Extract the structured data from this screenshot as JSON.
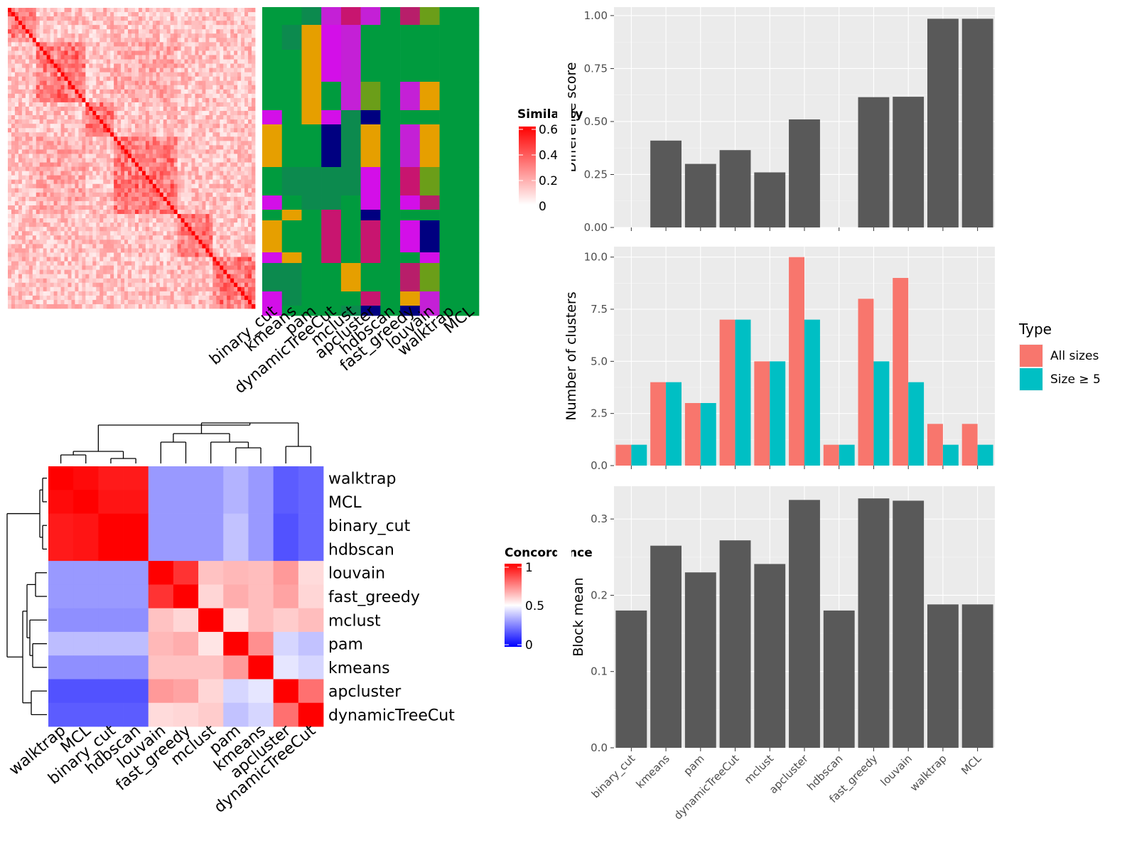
{
  "colors": {
    "methods": {
      "binary_cut": "#009B3E",
      "kmeans": "#D30FE8",
      "pam": "#E69F00",
      "dynamicTreeCut": "#000080",
      "mclust": "#C8156F",
      "apcluster": "#6B9E19",
      "hdbscan": "#0C8A4E",
      "fast_greedy": "#C420D6",
      "louvain": "#B81E6A",
      "walktrap": "#009B3E",
      "MCL": "#009B3E"
    },
    "all_sizes": "#F8766D",
    "size_ge_5": "#00BFC4",
    "bar_gray": "#595959"
  },
  "methods_top": [
    "binary_cut",
    "kmeans",
    "pam",
    "dynamicTreeCut",
    "mclust",
    "apcluster",
    "hdbscan",
    "fast_greedy",
    "louvain",
    "walktrap",
    "MCL"
  ],
  "similarity_legend": {
    "title": "Similarity",
    "ticks": [
      "0.6",
      "0.4",
      "0.2",
      "0"
    ]
  },
  "concordance": {
    "title": "Concordance",
    "order": [
      "walktrap",
      "MCL",
      "binary_cut",
      "hdbscan",
      "louvain",
      "fast_greedy",
      "mclust",
      "pam",
      "kmeans",
      "apcluster",
      "dynamicTreeCut"
    ],
    "legend_ticks": [
      "1",
      "0.5",
      "0"
    ],
    "matrix": [
      [
        1.0,
        0.98,
        0.95,
        0.95,
        0.3,
        0.3,
        0.3,
        0.35,
        0.3,
        0.18,
        0.2
      ],
      [
        0.98,
        1.0,
        0.96,
        0.96,
        0.3,
        0.3,
        0.3,
        0.35,
        0.3,
        0.18,
        0.2
      ],
      [
        0.95,
        0.96,
        1.0,
        1.0,
        0.3,
        0.3,
        0.3,
        0.38,
        0.3,
        0.16,
        0.2
      ],
      [
        0.95,
        0.96,
        1.0,
        1.0,
        0.3,
        0.3,
        0.3,
        0.38,
        0.3,
        0.16,
        0.2
      ],
      [
        0.3,
        0.3,
        0.3,
        0.3,
        1.0,
        0.9,
        0.62,
        0.64,
        0.63,
        0.7,
        0.57
      ],
      [
        0.3,
        0.3,
        0.3,
        0.3,
        0.9,
        1.0,
        0.58,
        0.66,
        0.63,
        0.68,
        0.58
      ],
      [
        0.28,
        0.28,
        0.28,
        0.28,
        0.62,
        0.58,
        1.0,
        0.55,
        0.63,
        0.6,
        0.63
      ],
      [
        0.37,
        0.37,
        0.37,
        0.37,
        0.64,
        0.66,
        0.55,
        1.0,
        0.72,
        0.42,
        0.38
      ],
      [
        0.28,
        0.28,
        0.28,
        0.28,
        0.62,
        0.62,
        0.62,
        0.7,
        1.0,
        0.45,
        0.42
      ],
      [
        0.16,
        0.16,
        0.16,
        0.16,
        0.7,
        0.68,
        0.58,
        0.42,
        0.45,
        1.0,
        0.78
      ],
      [
        0.18,
        0.18,
        0.18,
        0.18,
        0.57,
        0.58,
        0.6,
        0.38,
        0.42,
        0.78,
        1.0
      ]
    ]
  },
  "chart_data": [
    {
      "type": "bar",
      "categories": [
        "binary_cut",
        "kmeans",
        "pam",
        "dynamicTreeCut",
        "mclust",
        "apcluster",
        "hdbscan",
        "fast_greedy",
        "louvain",
        "walktrap",
        "MCL"
      ],
      "values": [
        0.0,
        0.41,
        0.3,
        0.365,
        0.26,
        0.51,
        0.0,
        0.615,
        0.617,
        0.985,
        0.985
      ],
      "ylabel": "Difference score",
      "ylim": [
        0,
        1.04
      ],
      "yticks": [
        "0.00",
        "0.25",
        "0.50",
        "0.75",
        "1.00"
      ],
      "grid": true
    },
    {
      "type": "bar",
      "categories": [
        "binary_cut",
        "kmeans",
        "pam",
        "dynamicTreeCut",
        "mclust",
        "apcluster",
        "hdbscan",
        "fast_greedy",
        "louvain",
        "walktrap",
        "MCL"
      ],
      "series": [
        {
          "name": "All sizes",
          "values": [
            1,
            4,
            3,
            7,
            5,
            10,
            1,
            8,
            9,
            2,
            2
          ]
        },
        {
          "name": "Size ≥ 5",
          "values": [
            1,
            4,
            3,
            7,
            5,
            7,
            1,
            5,
            4,
            1,
            1
          ]
        }
      ],
      "ylabel": "Number of clusters",
      "ylim": [
        0,
        10.5
      ],
      "yticks": [
        "0.0",
        "2.5",
        "5.0",
        "7.5",
        "10.0"
      ],
      "legend_title": "Type",
      "legend_position": "right",
      "grid": true
    },
    {
      "type": "bar",
      "categories": [
        "binary_cut",
        "kmeans",
        "pam",
        "dynamicTreeCut",
        "mclust",
        "apcluster",
        "hdbscan",
        "fast_greedy",
        "louvain",
        "walktrap",
        "MCL"
      ],
      "values": [
        0.18,
        0.265,
        0.23,
        0.272,
        0.241,
        0.325,
        0.18,
        0.327,
        0.324,
        0.188,
        0.188
      ],
      "ylabel": "Block mean",
      "ylim": [
        0,
        0.343
      ],
      "yticks": [
        "0.0",
        "0.1",
        "0.2",
        "0.3"
      ],
      "grid": true
    }
  ]
}
